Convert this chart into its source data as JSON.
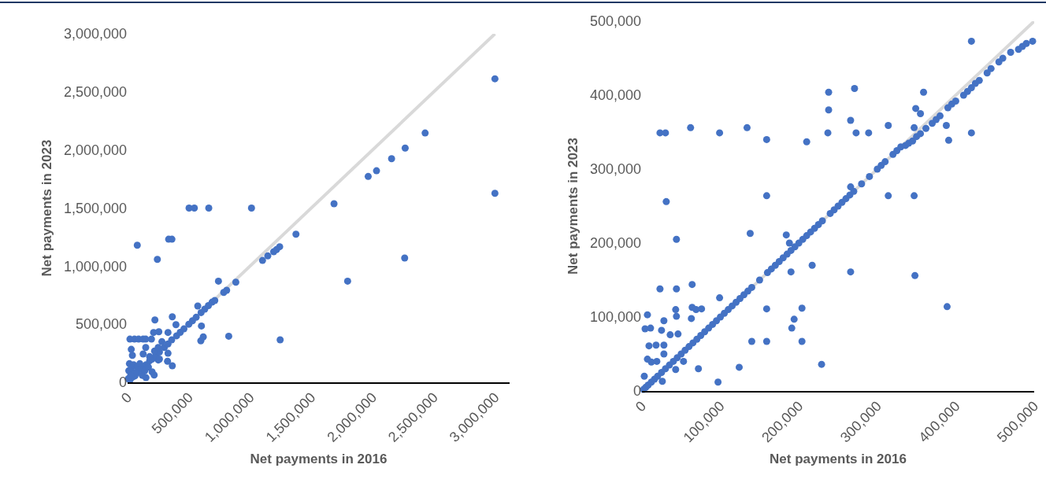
{
  "chart_data": [
    {
      "type": "scatter",
      "xlabel": "Net payments in 2016",
      "ylabel": "Net payments in 2023",
      "xlim": [
        0,
        3120000
      ],
      "ylim": [
        0,
        3000000
      ],
      "xticks": [
        0,
        {
          "value": 500000,
          "label": "500,000"
        },
        {
          "value": 1000000,
          "label": "1,000,000"
        },
        {
          "value": 1500000,
          "label": "1,500,000"
        },
        {
          "value": 2000000,
          "label": "2,000,000"
        },
        {
          "value": 2500000,
          "label": "2,500,000"
        },
        {
          "value": 3000000,
          "label": "3,000,000"
        }
      ],
      "yticks": [
        0,
        {
          "value": 500000,
          "label": "500,000"
        },
        {
          "value": 1000000,
          "label": "1,000,000"
        },
        {
          "value": 1500000,
          "label": "1,500,000"
        },
        {
          "value": 2000000,
          "label": "2,000,000"
        },
        {
          "value": 2500000,
          "label": "2,500,000"
        },
        {
          "value": 3000000,
          "label": "3,000,000"
        }
      ],
      "grid": false,
      "series": [
        {
          "type": "line",
          "color": "#d9d9d9",
          "x": [
            0,
            3000000
          ],
          "values": [
            0,
            3000000
          ]
        },
        {
          "color": "#4472c4",
          "marker": "circle",
          "x": [
            502000,
            545000,
            663000,
            1012000,
            1686000,
            1965000,
            79000,
            335000,
            362000,
            243000,
            1375000,
            1102000,
            1145000,
            1193000,
            1216000,
            1242000,
            1797000,
            742000,
            884000,
            785000,
            809000,
            573000,
            603000,
            598000,
            618000,
            826000,
            1246000,
            365000,
            223000,
            395000,
            19000,
            56000,
            90000,
            127000,
            148000,
            195000,
            212000,
            255000,
            330000,
            30000,
            39000,
            148000,
            251000,
            326000,
            365000,
            217000,
            127000,
            180000,
            3000000,
            3000000,
            2430000,
            2267000,
            2263000,
            2156000,
            2033000,
            20000,
            40000,
            60000,
            80000,
            120000,
            150000,
            180000,
            200000,
            230000,
            260000,
            300000,
            330000,
            360000,
            400000,
            430000,
            460000,
            500000,
            530000,
            560000,
            600000,
            630000,
            660000,
            690000,
            712000,
            10000,
            15000,
            30000,
            50000,
            60000,
            80000,
            100000,
            120000,
            140000,
            150000,
            170000,
            200000,
            220000,
            250000,
            280000,
            330000,
            260000,
            5000,
            25000
          ],
          "values": [
            1500000,
            1500000,
            1500000,
            1500000,
            1537000,
            1772000,
            1180000,
            1232000,
            1232000,
            1058000,
            1275000,
            1049000,
            1088000,
            1124000,
            1142000,
            1167000,
            871000,
            871000,
            862000,
            774000,
            792000,
            657000,
            485000,
            357000,
            391000,
            397000,
            366000,
            564000,
            537000,
            496000,
            372000,
            372000,
            372000,
            372000,
            372000,
            372000,
            429000,
            435000,
            429000,
            284000,
            232000,
            300000,
            192000,
            181000,
            142000,
            63000,
            244000,
            221000,
            2613000,
            1627000,
            2146000,
            2016000,
            1070000,
            1925000,
            1821000,
            20000,
            45000,
            55000,
            85000,
            115000,
            150000,
            185000,
            200000,
            230000,
            260000,
            300000,
            330000,
            365000,
            400000,
            430000,
            460000,
            500000,
            530000,
            560000,
            600000,
            630000,
            660000,
            690000,
            704000,
            100000,
            160000,
            120000,
            150000,
            80000,
            130000,
            160000,
            60000,
            100000,
            40000,
            130000,
            90000,
            270000,
            300000,
            350000,
            250000,
            200000,
            30000,
            60000
          ]
        }
      ]
    },
    {
      "type": "scatter",
      "xlabel": "Net payments in 2016",
      "ylabel": "Net payments in 2023",
      "xlim": [
        0,
        500000
      ],
      "ylim": [
        0,
        500000
      ],
      "xticks": [
        0,
        {
          "value": 100000,
          "label": "100,000"
        },
        {
          "value": 200000,
          "label": "200,000"
        },
        {
          "value": 300000,
          "label": "300,000"
        },
        {
          "value": 400000,
          "label": "400,000"
        },
        {
          "value": 500000,
          "label": "500,000"
        }
      ],
      "yticks": [
        0,
        {
          "value": 100000,
          "label": "100,000"
        },
        {
          "value": 200000,
          "label": "200,000"
        },
        {
          "value": 300000,
          "label": "300,000"
        },
        {
          "value": 400000,
          "label": "400,000"
        },
        {
          "value": 500000,
          "label": "500,000"
        }
      ],
      "grid": false,
      "series": [
        {
          "type": "line",
          "color": "#d9d9d9",
          "x": [
            0,
            500000
          ],
          "values": [
            0,
            500000
          ]
        },
        {
          "color": "#4472c4",
          "marker": "circle",
          "x": [
            238000,
            271000,
            359000,
            238000,
            349000,
            355000,
            266000,
            314000,
            347000,
            388000,
            391000,
            420000,
            23000,
            30000,
            99000,
            237000,
            273000,
            289000,
            62000,
            134000,
            159000,
            210000,
            31000,
            159000,
            314000,
            347000,
            266000,
            44000,
            138000,
            184000,
            188000,
            217000,
            190000,
            266000,
            348000,
            389000,
            23000,
            44000,
            64000,
            99000,
            159000,
            204000,
            194000,
            191000,
            140000,
            159000,
            204000,
            229000,
            124000,
            72000,
            53000,
            97000,
            43000,
            26000,
            3000,
            7000,
            4000,
            11000,
            28000,
            25000,
            43000,
            44000,
            64000,
            63000,
            69000,
            76000,
            36000,
            46000,
            9000,
            18000,
            28000,
            7000,
            12000,
            19000,
            28000,
            420000,
            2000,
            5000,
            8000,
            12000,
            16000,
            20000,
            25000,
            30000,
            35000,
            40000,
            45000,
            50000,
            55000,
            60000,
            65000,
            70000,
            75000,
            80000,
            85000,
            90000,
            95000,
            100000,
            105000,
            110000,
            115000,
            120000,
            125000,
            130000,
            135000,
            140000,
            150000,
            160000,
            165000,
            170000,
            175000,
            180000,
            185000,
            190000,
            195000,
            200000,
            205000,
            210000,
            215000,
            220000,
            225000,
            230000,
            240000,
            245000,
            250000,
            255000,
            260000,
            265000,
            270000,
            280000,
            290000,
            300000,
            305000,
            310000,
            320000,
            325000,
            330000,
            336000,
            340000,
            345000,
            350000,
            355000,
            362000,
            370000,
            375000,
            380000,
            390000,
            395000,
            400000,
            410000,
            415000,
            420000,
            425000,
            430000,
            440000,
            445000,
            455000,
            460000,
            470000,
            480000,
            485000,
            490000,
            498000
          ],
          "values": [
            404000,
            409000,
            404000,
            380000,
            382000,
            375000,
            366000,
            359000,
            356000,
            359000,
            339000,
            349000,
            349000,
            349000,
            349000,
            349000,
            349000,
            349000,
            356000,
            356000,
            340000,
            337000,
            256000,
            264000,
            264000,
            264000,
            276000,
            205000,
            213000,
            211000,
            200000,
            170000,
            161000,
            161000,
            156000,
            114000,
            138000,
            138000,
            144000,
            126000,
            111000,
            112000,
            97000,
            85000,
            67000,
            67000,
            67000,
            36000,
            32000,
            30000,
            40000,
            12000,
            29000,
            13000,
            20000,
            103000,
            84000,
            85000,
            95000,
            82000,
            110000,
            101000,
            113000,
            98000,
            110000,
            111000,
            76000,
            77000,
            61000,
            62000,
            62000,
            43000,
            39000,
            40000,
            50000,
            473000,
            2000,
            5000,
            8000,
            12000,
            16000,
            20000,
            25000,
            30000,
            35000,
            40000,
            45000,
            50000,
            55000,
            60000,
            65000,
            70000,
            75000,
            80000,
            85000,
            90000,
            95000,
            100000,
            105000,
            110000,
            115000,
            120000,
            125000,
            130000,
            135000,
            140000,
            150000,
            160000,
            165000,
            170000,
            175000,
            180000,
            185000,
            190000,
            195000,
            200000,
            205000,
            210000,
            215000,
            220000,
            225000,
            230000,
            240000,
            245000,
            250000,
            255000,
            260000,
            265000,
            270000,
            280000,
            290000,
            300000,
            305000,
            310000,
            320000,
            325000,
            330000,
            332000,
            335000,
            338000,
            344000,
            348000,
            355000,
            362000,
            367000,
            372000,
            383000,
            388000,
            392000,
            400000,
            405000,
            410000,
            416000,
            420000,
            430000,
            436000,
            445000,
            450000,
            458000,
            462000,
            466000,
            470000,
            473000
          ]
        }
      ]
    }
  ]
}
